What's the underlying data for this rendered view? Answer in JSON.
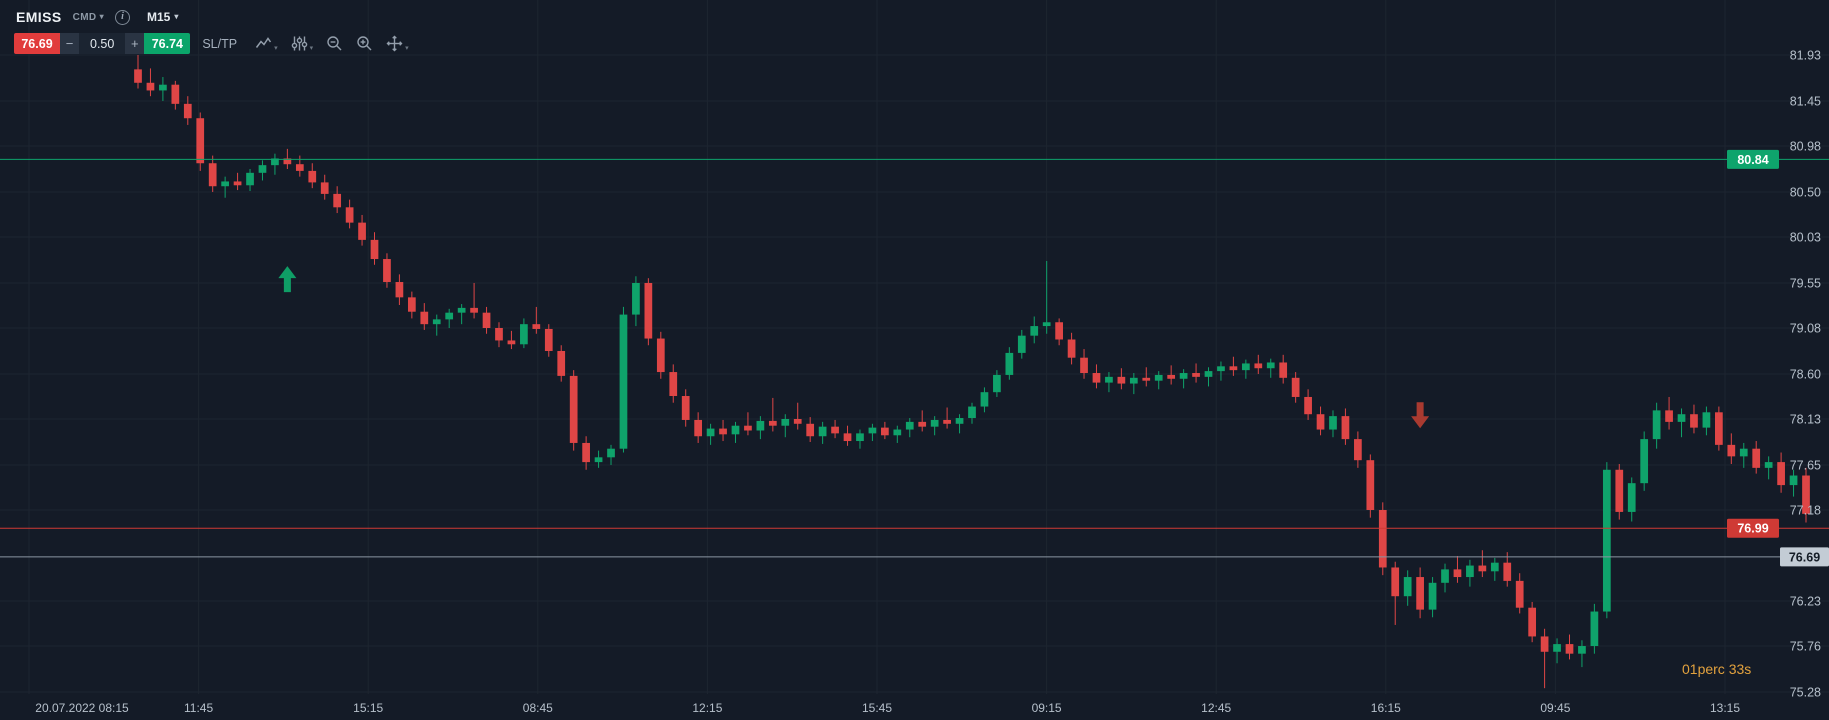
{
  "header": {
    "symbol": "EMISS",
    "instrument_group": "CMD",
    "timeframe": "M15"
  },
  "trade": {
    "sell_price": "76.69",
    "volume_decrease": "−",
    "volume": "0.50",
    "volume_increase": "+",
    "buy_price": "76.74",
    "sltp": "SL/TP"
  },
  "toolbar": {
    "icons": [
      "line-chart",
      "indicators",
      "zoom-out",
      "zoom-in",
      "crosshair"
    ]
  },
  "timer": "01perc 33s",
  "colors": {
    "background": "#141b27",
    "grid": "#1d2530",
    "bull": "#0fa36b",
    "bear": "#df4646",
    "axis_text": "#b6c0cb",
    "sell_button": "#e13c3c",
    "buy_button": "#0ba56a",
    "timer_text": "#e3a23e"
  },
  "chart_data": {
    "type": "candlestick",
    "title": "EMISS M15",
    "y_range": [
      75.28,
      81.93
    ],
    "y_ticks": [
      "81.93",
      "81.45",
      "80.98",
      "80.50",
      "80.03",
      "79.55",
      "79.08",
      "78.60",
      "78.13",
      "77.65",
      "77.18",
      "76.23",
      "75.76",
      "75.28"
    ],
    "x_labels": [
      "20.07.2022 08:15",
      "11:45",
      "15:15",
      "08:45",
      "12:15",
      "15:45",
      "09:15",
      "12:45",
      "16:15",
      "09:45",
      "13:15"
    ],
    "price_lines": [
      {
        "kind": "level-high",
        "label": "80.84",
        "value": 80.84,
        "color": "#0ea46c"
      },
      {
        "kind": "level-low",
        "label": "76.99",
        "value": 76.99,
        "color": "#cf3a35"
      },
      {
        "kind": "last-price",
        "label": "76.69",
        "value": 76.69,
        "color": "#8b96a3"
      }
    ],
    "annotations": [
      {
        "shape": "arrow-up",
        "index": 12,
        "price": 79.58,
        "color": "#0f9e66"
      },
      {
        "shape": "arrow-down",
        "index": 103,
        "price": 78.18,
        "color": "#a93a30"
      }
    ],
    "candles": [
      [
        81.78,
        81.93,
        81.58,
        81.64
      ],
      [
        81.64,
        81.79,
        81.5,
        81.56
      ],
      [
        81.56,
        81.7,
        81.45,
        81.62
      ],
      [
        81.62,
        81.66,
        81.36,
        81.42
      ],
      [
        81.42,
        81.5,
        81.2,
        81.27
      ],
      [
        81.27,
        81.33,
        80.72,
        80.8
      ],
      [
        80.8,
        80.88,
        80.5,
        80.56
      ],
      [
        80.56,
        80.66,
        80.44,
        80.61
      ],
      [
        80.61,
        80.7,
        80.52,
        80.57
      ],
      [
        80.57,
        80.74,
        80.51,
        80.7
      ],
      [
        80.7,
        80.83,
        80.62,
        80.78
      ],
      [
        80.78,
        80.9,
        80.68,
        80.85
      ],
      [
        80.85,
        80.95,
        80.74,
        80.79
      ],
      [
        80.79,
        80.88,
        80.66,
        80.72
      ],
      [
        80.72,
        80.8,
        80.54,
        80.6
      ],
      [
        80.6,
        80.68,
        80.42,
        80.48
      ],
      [
        80.48,
        80.56,
        80.28,
        80.34
      ],
      [
        80.34,
        80.42,
        80.12,
        80.18
      ],
      [
        80.18,
        80.26,
        79.94,
        80.0
      ],
      [
        80.0,
        80.08,
        79.74,
        79.8
      ],
      [
        79.8,
        79.86,
        79.5,
        79.56
      ],
      [
        79.56,
        79.64,
        79.32,
        79.4
      ],
      [
        79.4,
        79.46,
        79.18,
        79.25
      ],
      [
        79.25,
        79.34,
        79.06,
        79.12
      ],
      [
        79.12,
        79.22,
        79.0,
        79.17
      ],
      [
        79.17,
        79.28,
        79.08,
        79.24
      ],
      [
        79.24,
        79.33,
        79.12,
        79.29
      ],
      [
        79.29,
        79.55,
        79.18,
        79.24
      ],
      [
        79.24,
        79.3,
        79.02,
        79.08
      ],
      [
        79.08,
        79.14,
        78.88,
        78.95
      ],
      [
        78.95,
        79.05,
        78.86,
        78.91
      ],
      [
        78.91,
        79.18,
        78.87,
        79.12
      ],
      [
        79.12,
        79.3,
        79.02,
        79.07
      ],
      [
        79.07,
        79.12,
        78.78,
        78.84
      ],
      [
        78.84,
        78.9,
        78.52,
        78.58
      ],
      [
        78.58,
        78.64,
        77.8,
        77.88
      ],
      [
        77.88,
        77.95,
        77.6,
        77.68
      ],
      [
        77.68,
        77.8,
        77.62,
        77.73
      ],
      [
        77.73,
        77.86,
        77.65,
        77.82
      ],
      [
        77.82,
        79.3,
        77.78,
        79.22
      ],
      [
        79.22,
        79.62,
        79.1,
        79.55
      ],
      [
        79.55,
        79.6,
        78.9,
        78.97
      ],
      [
        78.97,
        79.04,
        78.55,
        78.62
      ],
      [
        78.62,
        78.7,
        78.3,
        78.37
      ],
      [
        78.37,
        78.44,
        78.05,
        78.12
      ],
      [
        78.12,
        78.2,
        77.88,
        77.95
      ],
      [
        77.95,
        78.08,
        77.86,
        78.03
      ],
      [
        78.03,
        78.12,
        77.9,
        77.97
      ],
      [
        77.97,
        78.1,
        77.88,
        78.06
      ],
      [
        78.06,
        78.2,
        77.96,
        78.01
      ],
      [
        78.01,
        78.16,
        77.92,
        78.11
      ],
      [
        78.11,
        78.35,
        78.0,
        78.06
      ],
      [
        78.06,
        78.18,
        77.94,
        78.13
      ],
      [
        78.13,
        78.3,
        78.02,
        78.08
      ],
      [
        78.08,
        78.15,
        77.89,
        77.95
      ],
      [
        77.95,
        78.1,
        77.87,
        78.05
      ],
      [
        78.05,
        78.12,
        77.93,
        77.98
      ],
      [
        77.98,
        78.06,
        77.85,
        77.9
      ],
      [
        77.9,
        78.02,
        77.82,
        77.98
      ],
      [
        77.98,
        78.08,
        77.9,
        78.04
      ],
      [
        78.04,
        78.1,
        77.92,
        77.96
      ],
      [
        77.96,
        78.06,
        77.88,
        78.02
      ],
      [
        78.02,
        78.14,
        77.94,
        78.1
      ],
      [
        78.1,
        78.22,
        78.0,
        78.05
      ],
      [
        78.05,
        78.16,
        77.96,
        78.12
      ],
      [
        78.12,
        78.25,
        78.03,
        78.08
      ],
      [
        78.08,
        78.18,
        77.98,
        78.14
      ],
      [
        78.14,
        78.3,
        78.08,
        78.26
      ],
      [
        78.26,
        78.46,
        78.2,
        78.41
      ],
      [
        78.41,
        78.64,
        78.36,
        78.59
      ],
      [
        78.59,
        78.88,
        78.54,
        78.82
      ],
      [
        78.82,
        79.06,
        78.76,
        79.0
      ],
      [
        79.0,
        79.2,
        78.92,
        79.1
      ],
      [
        79.1,
        79.78,
        79.02,
        79.14
      ],
      [
        79.14,
        79.18,
        78.9,
        78.96
      ],
      [
        78.96,
        79.03,
        78.7,
        78.77
      ],
      [
        78.77,
        78.86,
        78.55,
        78.61
      ],
      [
        78.61,
        78.7,
        78.45,
        78.51
      ],
      [
        78.51,
        78.62,
        78.41,
        78.57
      ],
      [
        78.57,
        78.66,
        78.44,
        78.5
      ],
      [
        78.5,
        78.61,
        78.39,
        78.56
      ],
      [
        78.56,
        78.67,
        78.47,
        78.53
      ],
      [
        78.53,
        78.63,
        78.44,
        78.59
      ],
      [
        78.59,
        78.69,
        78.49,
        78.55
      ],
      [
        78.55,
        78.65,
        78.45,
        78.61
      ],
      [
        78.61,
        78.71,
        78.51,
        78.57
      ],
      [
        78.57,
        78.67,
        78.47,
        78.63
      ],
      [
        78.63,
        78.73,
        78.53,
        78.68
      ],
      [
        78.68,
        78.78,
        78.58,
        78.64
      ],
      [
        78.64,
        78.75,
        78.55,
        78.71
      ],
      [
        78.71,
        78.8,
        78.6,
        78.66
      ],
      [
        78.66,
        78.76,
        78.56,
        78.72
      ],
      [
        78.72,
        78.8,
        78.5,
        78.56
      ],
      [
        78.56,
        78.62,
        78.3,
        78.36
      ],
      [
        78.36,
        78.44,
        78.12,
        78.18
      ],
      [
        78.18,
        78.26,
        77.96,
        78.02
      ],
      [
        78.02,
        78.22,
        77.94,
        78.16
      ],
      [
        78.16,
        78.24,
        77.86,
        77.92
      ],
      [
        77.92,
        78.0,
        77.62,
        77.7
      ],
      [
        77.7,
        77.76,
        77.1,
        77.18
      ],
      [
        77.18,
        77.26,
        76.5,
        76.58
      ],
      [
        76.58,
        76.64,
        75.98,
        76.28
      ],
      [
        76.28,
        76.55,
        76.18,
        76.48
      ],
      [
        76.48,
        76.58,
        76.05,
        76.14
      ],
      [
        76.14,
        76.48,
        76.06,
        76.42
      ],
      [
        76.42,
        76.62,
        76.32,
        76.56
      ],
      [
        76.56,
        76.7,
        76.42,
        76.48
      ],
      [
        76.48,
        76.66,
        76.38,
        76.6
      ],
      [
        76.6,
        76.76,
        76.48,
        76.54
      ],
      [
        76.54,
        76.68,
        76.44,
        76.63
      ],
      [
        76.63,
        76.74,
        76.38,
        76.44
      ],
      [
        76.44,
        76.52,
        76.1,
        76.16
      ],
      [
        76.16,
        76.22,
        75.8,
        75.86
      ],
      [
        75.86,
        75.94,
        75.32,
        75.7
      ],
      [
        75.7,
        75.84,
        75.58,
        75.78
      ],
      [
        75.78,
        75.88,
        75.62,
        75.68
      ],
      [
        75.68,
        75.82,
        75.54,
        75.76
      ],
      [
        75.76,
        76.2,
        75.68,
        76.12
      ],
      [
        76.12,
        77.68,
        76.05,
        77.6
      ],
      [
        77.6,
        77.66,
        77.08,
        77.16
      ],
      [
        77.16,
        77.52,
        77.06,
        77.46
      ],
      [
        77.46,
        78.0,
        77.38,
        77.92
      ],
      [
        77.92,
        78.3,
        77.82,
        78.22
      ],
      [
        78.22,
        78.36,
        78.02,
        78.1
      ],
      [
        78.1,
        78.24,
        77.94,
        78.18
      ],
      [
        78.18,
        78.28,
        77.98,
        78.04
      ],
      [
        78.04,
        78.26,
        77.96,
        78.2
      ],
      [
        78.2,
        78.26,
        77.8,
        77.86
      ],
      [
        77.86,
        77.98,
        77.66,
        77.74
      ],
      [
        77.74,
        77.88,
        77.62,
        77.82
      ],
      [
        77.82,
        77.9,
        77.56,
        77.62
      ],
      [
        77.62,
        77.74,
        77.5,
        77.68
      ],
      [
        77.68,
        77.78,
        77.36,
        77.44
      ],
      [
        77.44,
        77.6,
        77.32,
        77.54
      ],
      [
        77.54,
        77.62,
        77.05,
        77.14
      ]
    ]
  }
}
